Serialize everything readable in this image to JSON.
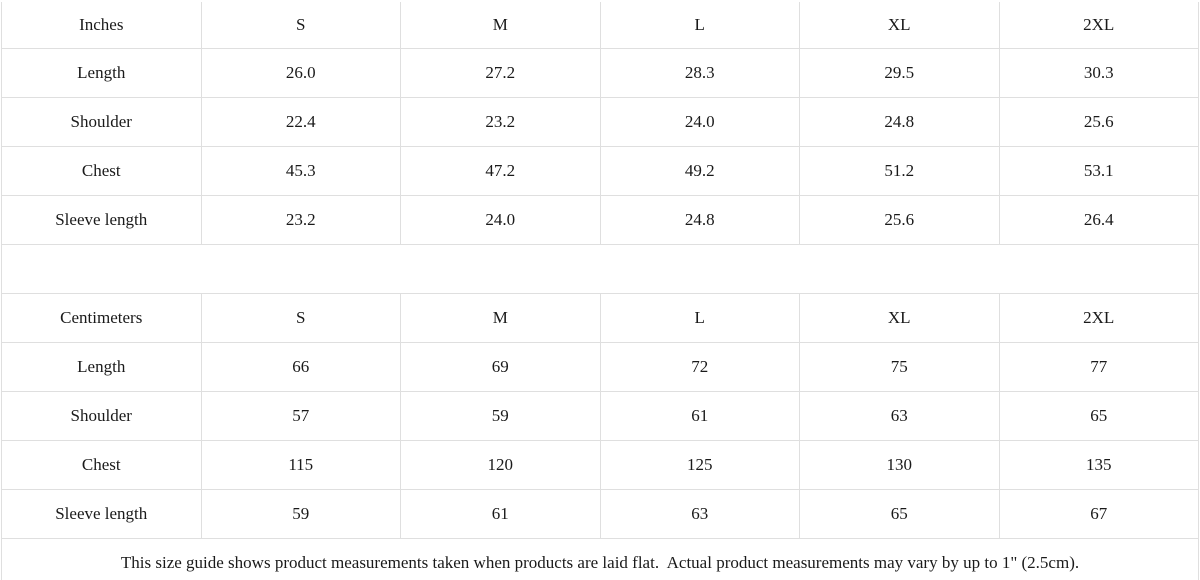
{
  "colors": {
    "shaded_cell_bg": "#f1f1f1",
    "cell_bg": "#ffffff",
    "border": "#dfdfdf",
    "text": "#1a1a1a"
  },
  "size_chart": {
    "tables": [
      {
        "unit_label": "Inches",
        "sizes": [
          "S",
          "M",
          "L",
          "XL",
          "2XL"
        ],
        "rows": [
          {
            "label": "Length",
            "values": [
              "26.0",
              "27.2",
              "28.3",
              "29.5",
              "30.3"
            ]
          },
          {
            "label": "Shoulder",
            "values": [
              "22.4",
              "23.2",
              "24.0",
              "24.8",
              "25.6"
            ]
          },
          {
            "label": "Chest",
            "values": [
              "45.3",
              "47.2",
              "49.2",
              "51.2",
              "53.1"
            ]
          },
          {
            "label": "Sleeve length",
            "values": [
              "23.2",
              "24.0",
              "24.8",
              "25.6",
              "26.4"
            ]
          }
        ]
      },
      {
        "unit_label": "Centimeters",
        "sizes": [
          "S",
          "M",
          "L",
          "XL",
          "2XL"
        ],
        "rows": [
          {
            "label": "Length",
            "values": [
              "66",
              "69",
              "72",
              "75",
              "77"
            ]
          },
          {
            "label": "Shoulder",
            "values": [
              "57",
              "59",
              "61",
              "63",
              "65"
            ]
          },
          {
            "label": "Chest",
            "values": [
              "115",
              "120",
              "125",
              "130",
              "135"
            ]
          },
          {
            "label": "Sleeve length",
            "values": [
              "59",
              "61",
              "63",
              "65",
              "67"
            ]
          }
        ]
      }
    ],
    "footnote": "This size guide shows product measurements taken when products are laid flat.  Actual product measurements may vary by up to 1\" (2.5cm)."
  }
}
